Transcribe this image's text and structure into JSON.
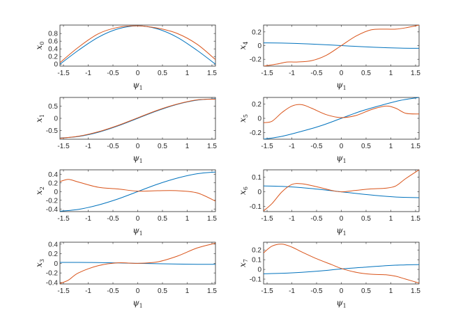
{
  "colors": {
    "series_blue": "#0072BD",
    "series_orange": "#D95319",
    "axis": "#262626"
  },
  "chart_data": [
    {
      "type": "line",
      "xlabel": "ψ1",
      "ylabel": "x0",
      "xlim": [
        -1.5708,
        1.5708
      ],
      "ylim": [
        -0.05,
        1.02
      ],
      "xticks": [
        -1.5,
        -1,
        -0.5,
        0,
        0.5,
        1,
        1.5
      ],
      "xtick_labels": [
        "-1.5",
        "-1",
        "-0.5",
        "0",
        "0.5",
        "1",
        "1.5"
      ],
      "yticks": [
        0,
        0.2,
        0.4,
        0.6,
        0.8
      ],
      "ytick_labels": [
        "0",
        "0.2",
        "0.4",
        "0.6",
        "0.8"
      ],
      "series": [
        {
          "color": "#0072BD",
          "x": [
            -1.5708,
            -1.2,
            -0.8,
            -0.4,
            0,
            0.4,
            0.8,
            1.2,
            1.5708
          ],
          "y": [
            0,
            0.36,
            0.7,
            0.92,
            1.0,
            0.92,
            0.7,
            0.36,
            0
          ]
        },
        {
          "color": "#D95319",
          "x": [
            -1.5708,
            -1.2,
            -0.8,
            -0.4,
            0,
            0.4,
            0.8,
            1.2,
            1.5708
          ],
          "y": [
            0.04,
            0.44,
            0.79,
            0.96,
            1.0,
            0.94,
            0.8,
            0.52,
            0.12
          ]
        }
      ]
    },
    {
      "type": "line",
      "xlabel": "ψ1",
      "ylabel": "x1",
      "xlim": [
        -1.5708,
        1.5708
      ],
      "ylim": [
        -0.85,
        0.85
      ],
      "xticks": [
        -1.5,
        -1,
        -0.5,
        0,
        0.5,
        1,
        1.5
      ],
      "xtick_labels": [
        "-1.5",
        "-1",
        "-0.5",
        "0",
        "0.5",
        "1",
        "1.5"
      ],
      "yticks": [
        -0.5,
        0,
        0.5
      ],
      "ytick_labels": [
        "-0.5",
        "0",
        "0.5"
      ],
      "series": [
        {
          "color": "#0072BD",
          "x": [
            -1.5708,
            -1.2,
            -0.8,
            -0.4,
            0,
            0.4,
            0.8,
            1.2,
            1.5708
          ],
          "y": [
            -0.8,
            -0.74,
            -0.57,
            -0.31,
            0,
            0.31,
            0.57,
            0.74,
            0.8
          ]
        },
        {
          "color": "#D95319",
          "x": [
            -1.5708,
            -1.2,
            -0.8,
            -0.4,
            0,
            0.4,
            0.8,
            1.2,
            1.5708
          ],
          "y": [
            -0.81,
            -0.73,
            -0.55,
            -0.29,
            0.02,
            0.33,
            0.58,
            0.75,
            0.78
          ]
        }
      ]
    },
    {
      "type": "line",
      "xlabel": "ψ1",
      "ylabel": "x2",
      "xlim": [
        -1.5708,
        1.5708
      ],
      "ylim": [
        -0.46,
        0.5
      ],
      "xticks": [
        -1.5,
        -1,
        -0.5,
        0,
        0.5,
        1,
        1.5
      ],
      "xtick_labels": [
        "-1.5",
        "-1",
        "-0.5",
        "0",
        "0.5",
        "1",
        "1.5"
      ],
      "yticks": [
        -0.4,
        -0.2,
        0,
        0.2,
        0.4
      ],
      "ytick_labels": [
        "-0.4",
        "-0.2",
        "0",
        "0.2",
        "0.4"
      ],
      "series": [
        {
          "color": "#0072BD",
          "x": [
            -1.5708,
            -1.2,
            -0.8,
            -0.4,
            0,
            0.4,
            0.8,
            1.2,
            1.5708
          ],
          "y": [
            -0.45,
            -0.41,
            -0.31,
            -0.17,
            0,
            0.17,
            0.31,
            0.41,
            0.45
          ]
        },
        {
          "color": "#D95319",
          "x": [
            -1.5708,
            -1.4,
            -1.2,
            -0.8,
            -0.4,
            0,
            0.4,
            0.8,
            1.2,
            1.5708
          ],
          "y": [
            0.23,
            0.28,
            0.22,
            0.1,
            0.06,
            0.01,
            0.02,
            0.02,
            -0.03,
            -0.22
          ]
        }
      ]
    },
    {
      "type": "line",
      "xlabel": "ψ1",
      "ylabel": "x3",
      "xlim": [
        -1.5708,
        1.5708
      ],
      "ylim": [
        -0.43,
        0.44
      ],
      "xticks": [
        -1.5,
        -1,
        -0.5,
        0,
        0.5,
        1,
        1.5
      ],
      "xtick_labels": [
        "-1.5",
        "-1",
        "-0.5",
        "0",
        "0.5",
        "1",
        "1.5"
      ],
      "yticks": [
        -0.4,
        -0.2,
        0,
        0.2,
        0.4
      ],
      "ytick_labels": [
        "-0.4",
        "-0.2",
        "0",
        "0.2",
        "0.4"
      ],
      "series": [
        {
          "color": "#0072BD",
          "x": [
            -1.5708,
            -1.2,
            -0.8,
            -0.4,
            0,
            0.4,
            0.8,
            1.2,
            1.5708
          ],
          "y": [
            0.02,
            0.02,
            0.015,
            0.008,
            0,
            -0.008,
            -0.015,
            -0.02,
            -0.02
          ]
        },
        {
          "color": "#D95319",
          "x": [
            -1.5708,
            -1.4,
            -1.2,
            -0.8,
            -0.4,
            0,
            0.4,
            0.8,
            1.2,
            1.5708
          ],
          "y": [
            -0.42,
            -0.35,
            -0.2,
            -0.05,
            0.01,
            0,
            0.03,
            0.15,
            0.32,
            0.42
          ]
        }
      ]
    },
    {
      "type": "line",
      "xlabel": "ψ1",
      "ylabel": "x4",
      "xlim": [
        -1.5708,
        1.5708
      ],
      "ylim": [
        -0.3,
        0.3
      ],
      "xticks": [
        -1.5,
        -1,
        -0.5,
        0,
        0.5,
        1,
        1.5
      ],
      "xtick_labels": [
        "-1.5",
        "-1",
        "-0.5",
        "0",
        "0.5",
        "1",
        "1.5"
      ],
      "yticks": [
        -0.2,
        0,
        0.2
      ],
      "ytick_labels": [
        "-0.2",
        "0",
        "0.2"
      ],
      "series": [
        {
          "color": "#0072BD",
          "x": [
            -1.5708,
            -1.2,
            -0.8,
            -0.4,
            0,
            0.4,
            0.8,
            1.2,
            1.5708
          ],
          "y": [
            0.04,
            0.037,
            0.028,
            0.015,
            0,
            -0.015,
            -0.028,
            -0.037,
            -0.04
          ]
        },
        {
          "color": "#D95319",
          "x": [
            -1.5708,
            -1.3,
            -1.1,
            -0.9,
            -0.6,
            -0.3,
            0,
            0.3,
            0.6,
            0.9,
            1.1,
            1.3,
            1.5708
          ],
          "y": [
            -0.3,
            -0.27,
            -0.24,
            -0.24,
            -0.22,
            -0.14,
            0,
            0.14,
            0.23,
            0.24,
            0.24,
            0.26,
            0.3
          ]
        }
      ]
    },
    {
      "type": "line",
      "xlabel": "ψ1",
      "ylabel": "x5",
      "xlim": [
        -1.5708,
        1.5708
      ],
      "ylim": [
        -0.29,
        0.29
      ],
      "xticks": [
        -1.5,
        -1,
        -0.5,
        0,
        0.5,
        1,
        1.5
      ],
      "xtick_labels": [
        "-1.5",
        "-1",
        "-0.5",
        "0",
        "0.5",
        "1",
        "1.5"
      ],
      "yticks": [
        -0.2,
        0,
        0.2
      ],
      "ytick_labels": [
        "-0.2",
        "0",
        "0.2"
      ],
      "series": [
        {
          "color": "#0072BD",
          "x": [
            -1.5708,
            -1.2,
            -0.8,
            -0.4,
            0,
            0.4,
            0.8,
            1.2,
            1.5708
          ],
          "y": [
            -0.29,
            -0.25,
            -0.18,
            -0.1,
            0,
            0.1,
            0.18,
            0.25,
            0.29
          ]
        },
        {
          "color": "#D95319",
          "x": [
            -1.5708,
            -1.4,
            -1.2,
            -1.0,
            -0.8,
            -0.6,
            -0.3,
            0,
            0.3,
            0.6,
            0.9,
            1.1,
            1.3,
            1.5708
          ],
          "y": [
            -0.06,
            -0.04,
            0.08,
            0.17,
            0.19,
            0.14,
            0.05,
            0.01,
            0.04,
            0.12,
            0.17,
            0.14,
            0.07,
            0.06
          ]
        }
      ]
    },
    {
      "type": "line",
      "xlabel": "ψ1",
      "ylabel": "x6",
      "xlim": [
        -1.5708,
        1.5708
      ],
      "ylim": [
        -0.135,
        0.15
      ],
      "xticks": [
        -1.5,
        -1,
        -0.5,
        0,
        0.5,
        1,
        1.5
      ],
      "xtick_labels": [
        "-1.5",
        "-1",
        "-0.5",
        "0",
        "0.5",
        "1",
        "1.5"
      ],
      "yticks": [
        -0.1,
        0,
        0.1
      ],
      "ytick_labels": [
        "-0.1",
        "0",
        "0.1"
      ],
      "series": [
        {
          "color": "#0072BD",
          "x": [
            -1.5708,
            -1.2,
            -0.8,
            -0.4,
            0,
            0.4,
            0.8,
            1.2,
            1.5708
          ],
          "y": [
            0.04,
            0.037,
            0.028,
            0.015,
            0,
            -0.015,
            -0.028,
            -0.037,
            -0.04
          ]
        },
        {
          "color": "#D95319",
          "x": [
            -1.5708,
            -1.4,
            -1.2,
            -1.0,
            -0.8,
            -0.5,
            -0.2,
            0,
            0.3,
            0.6,
            0.9,
            1.1,
            1.3,
            1.5708
          ],
          "y": [
            -0.13,
            -0.08,
            0.0,
            0.05,
            0.055,
            0.035,
            0.01,
            0.0,
            0.01,
            0.02,
            0.025,
            0.04,
            0.09,
            0.15
          ]
        }
      ]
    },
    {
      "type": "line",
      "xlabel": "ψ1",
      "ylabel": "x7",
      "xlim": [
        -1.5708,
        1.5708
      ],
      "ylim": [
        -0.15,
        0.28
      ],
      "xticks": [
        -1.5,
        -1,
        -0.5,
        0,
        0.5,
        1,
        1.5
      ],
      "xtick_labels": [
        "-1.5",
        "-1",
        "-0.5",
        "0",
        "0.5",
        "1",
        "1.5"
      ],
      "yticks": [
        -0.1,
        0,
        0.1,
        0.2
      ],
      "ytick_labels": [
        "-0.1",
        "0",
        "0.1",
        "0.2"
      ],
      "series": [
        {
          "color": "#0072BD",
          "x": [
            -1.5708,
            -1.2,
            -0.8,
            -0.4,
            0,
            0.4,
            0.8,
            1.2,
            1.5708
          ],
          "y": [
            -0.045,
            -0.04,
            -0.03,
            -0.015,
            0.005,
            0.02,
            0.035,
            0.045,
            0.05
          ]
        },
        {
          "color": "#D95319",
          "x": [
            -1.5708,
            -1.4,
            -1.2,
            -1.0,
            -0.8,
            -0.5,
            -0.2,
            0,
            0.3,
            0.6,
            0.9,
            1.1,
            1.3,
            1.5708
          ],
          "y": [
            0.17,
            0.24,
            0.26,
            0.23,
            0.18,
            0.11,
            0.05,
            0.01,
            -0.03,
            -0.05,
            -0.055,
            -0.07,
            -0.1,
            -0.14
          ]
        }
      ]
    }
  ]
}
